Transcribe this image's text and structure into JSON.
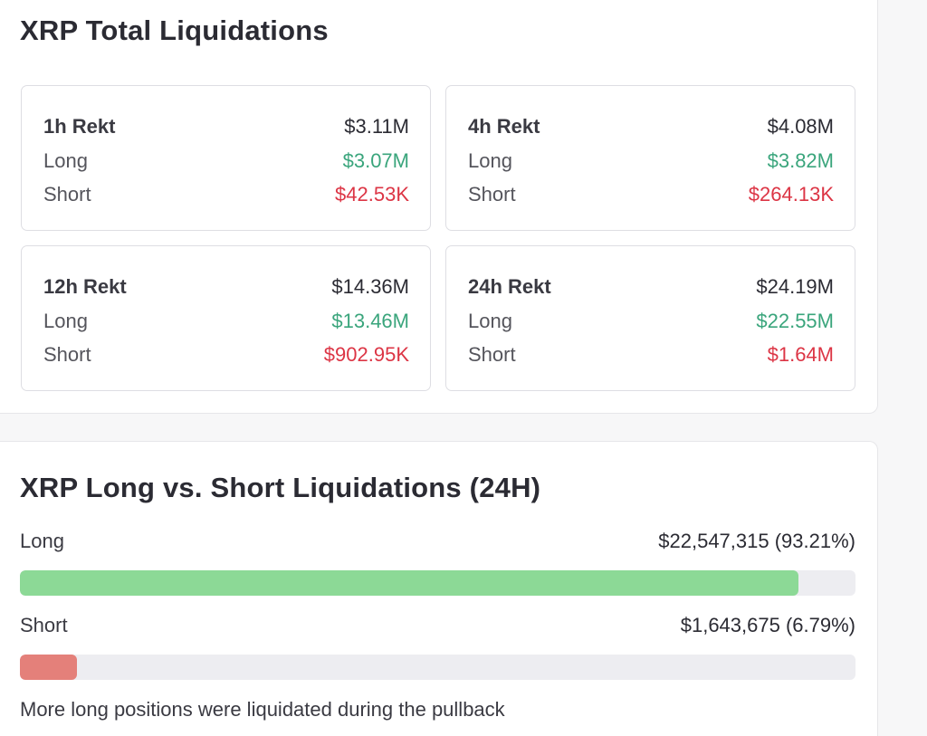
{
  "total": {
    "title": "XRP Total Liquidations",
    "cards": [
      {
        "period": "1h Rekt",
        "total": "$3.11M",
        "long_label": "Long",
        "long": "$3.07M",
        "short_label": "Short",
        "short": "$42.53K"
      },
      {
        "period": "4h Rekt",
        "total": "$4.08M",
        "long_label": "Long",
        "long": "$3.82M",
        "short_label": "Short",
        "short": "$264.13K"
      },
      {
        "period": "12h Rekt",
        "total": "$14.36M",
        "long_label": "Long",
        "long": "$13.46M",
        "short_label": "Short",
        "short": "$902.95K"
      },
      {
        "period": "24h Rekt",
        "total": "$24.19M",
        "long_label": "Long",
        "long": "$22.55M",
        "short_label": "Short",
        "short": "$1.64M"
      }
    ]
  },
  "versus": {
    "title": "XRP Long vs. Short Liquidations (24H)",
    "long": {
      "label": "Long",
      "value": "$22,547,315 (93.21%)",
      "fraction": 0.9321
    },
    "short": {
      "label": "Short",
      "value": "$1,643,675 (6.79%)",
      "fraction": 0.0679
    },
    "caption": "More long positions were liquidated during the pullback"
  },
  "colors": {
    "long_text": "#3aa57c",
    "short_text": "#dc3545",
    "long_bar": "#8cd996",
    "short_bar": "#e4807a",
    "track": "#ededf1"
  }
}
